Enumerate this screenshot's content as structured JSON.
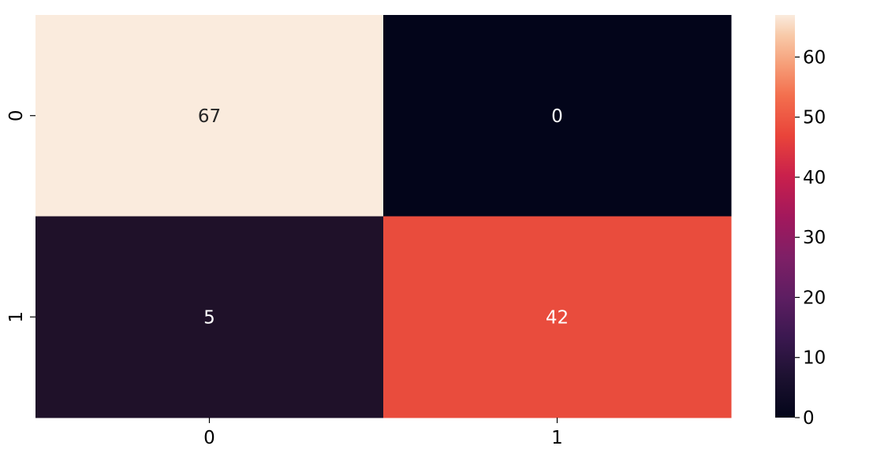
{
  "chart_data": {
    "type": "heatmap",
    "title": "",
    "xlabel": "",
    "ylabel": "",
    "x_categories": [
      "0",
      "1"
    ],
    "y_categories": [
      "0",
      "1"
    ],
    "values": [
      [
        67,
        0
      ],
      [
        5,
        42
      ]
    ],
    "annotations": true,
    "colormap": "rocket",
    "colorbar": {
      "min": 0,
      "max": 67,
      "ticks": [
        0,
        10,
        20,
        30,
        40,
        50,
        60
      ],
      "position": "right"
    },
    "colors": {
      "67": "#faebdd",
      "0": "#03051a",
      "5": "#1f1129",
      "42": "#e94c3d",
      "annotation_dark": "#262626",
      "annotation_light": "#ffffff"
    }
  }
}
